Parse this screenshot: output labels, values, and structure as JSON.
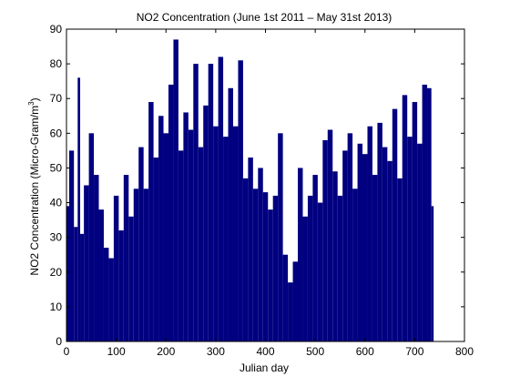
{
  "chart_data": {
    "type": "bar",
    "title": "NO2 Concentration (June 1st 2011 – May 31st 2013)",
    "xlabel": "Julian day",
    "ylabel": "NO2 Concentration  (Micro-Gram/m",
    "ylabel_superscript": "3",
    "ylabel_close": ")",
    "xlim": [
      0,
      800
    ],
    "ylim": [
      0,
      90
    ],
    "xticks": [
      0,
      100,
      200,
      300,
      400,
      500,
      600,
      700,
      800
    ],
    "yticks": [
      0,
      10,
      20,
      30,
      40,
      50,
      60,
      70,
      80,
      90
    ],
    "grid": false,
    "bar_color": "#000080",
    "x": [
      1,
      10,
      20,
      25,
      30,
      40,
      50,
      60,
      70,
      80,
      90,
      100,
      110,
      120,
      130,
      140,
      150,
      160,
      170,
      180,
      190,
      200,
      210,
      220,
      230,
      240,
      250,
      260,
      270,
      280,
      290,
      300,
      310,
      320,
      330,
      340,
      350,
      360,
      370,
      380,
      390,
      400,
      410,
      420,
      430,
      440,
      450,
      460,
      470,
      480,
      490,
      500,
      510,
      520,
      530,
      540,
      550,
      560,
      570,
      580,
      590,
      600,
      610,
      620,
      630,
      640,
      650,
      660,
      670,
      680,
      690,
      700,
      710,
      720,
      730,
      737
    ],
    "values": [
      39,
      55,
      33,
      76,
      31,
      45,
      60,
      48,
      38,
      27,
      24,
      42,
      32,
      48,
      36,
      44,
      56,
      44,
      69,
      53,
      65,
      60,
      74,
      87,
      55,
      66,
      61,
      80,
      56,
      68,
      80,
      62,
      82,
      59,
      73,
      62,
      81,
      47,
      53,
      44,
      50,
      43,
      38,
      42,
      60,
      25,
      17,
      23,
      50,
      36,
      42,
      48,
      40,
      58,
      61,
      49,
      42,
      55,
      60,
      44,
      57,
      54,
      62,
      48,
      63,
      56,
      52,
      67,
      47,
      71,
      59,
      69,
      57,
      74,
      73,
      39
    ]
  }
}
